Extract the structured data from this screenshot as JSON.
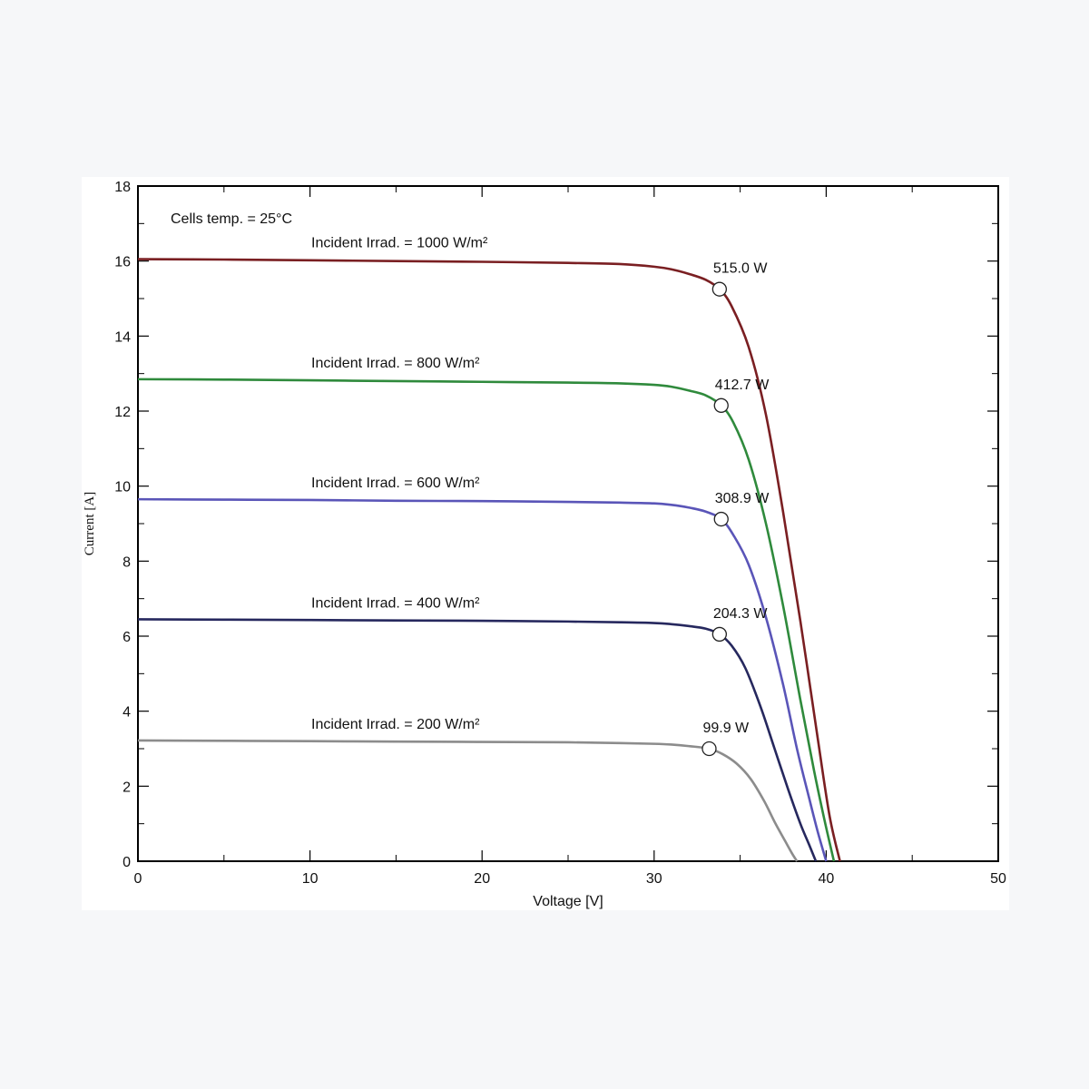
{
  "chart_data": {
    "type": "line",
    "title": "",
    "xlabel": "Voltage [V]",
    "ylabel": "Current [A]",
    "xlim": [
      0,
      50
    ],
    "ylim": [
      0,
      18
    ],
    "xticks": [
      0,
      10,
      20,
      30,
      40,
      50
    ],
    "yticks": [
      0,
      2,
      4,
      6,
      8,
      10,
      12,
      14,
      16,
      18
    ],
    "grid": false,
    "note": "Cells temp. = 25°C",
    "series": [
      {
        "name": "Incident Irrad. = 1000 W/m²",
        "color": "#7a1f22",
        "isc": 16.05,
        "voc": 40.8,
        "vmp": 33.8,
        "imp": 15.25,
        "mpp_label": "515.0 W",
        "x": [
          0,
          5,
          10,
          15,
          20,
          25,
          28,
          30,
          31,
          32,
          33,
          33.8,
          34.5,
          35.5,
          36.5,
          37.5,
          38.5,
          39.5,
          40.2,
          40.8
        ],
        "y": [
          16.05,
          16.04,
          16.02,
          16.0,
          15.98,
          15.95,
          15.92,
          15.85,
          15.78,
          15.66,
          15.5,
          15.25,
          14.8,
          13.7,
          11.9,
          9.3,
          6.4,
          3.3,
          1.2,
          0
        ]
      },
      {
        "name": "Incident Irrad. = 800 W/m²",
        "color": "#2f8a3c",
        "isc": 12.85,
        "voc": 40.45,
        "vmp": 33.9,
        "imp": 12.15,
        "mpp_label": "412.7 W",
        "x": [
          0,
          5,
          10,
          15,
          20,
          25,
          28,
          30,
          31,
          32,
          33,
          33.9,
          34.6,
          35.5,
          36.5,
          37.5,
          38.5,
          39.3,
          39.9,
          40.45
        ],
        "y": [
          12.85,
          12.84,
          12.82,
          12.8,
          12.78,
          12.76,
          12.74,
          12.7,
          12.65,
          12.55,
          12.42,
          12.15,
          11.7,
          10.7,
          9.0,
          6.8,
          4.3,
          2.4,
          1.1,
          0
        ]
      },
      {
        "name": "Incident Irrad. = 600 W/m²",
        "color": "#5a55b8",
        "isc": 9.65,
        "voc": 40.0,
        "vmp": 33.9,
        "imp": 9.12,
        "mpp_label": "308.9 W",
        "x": [
          0,
          5,
          10,
          15,
          20,
          25,
          28,
          30,
          31,
          32,
          33,
          33.9,
          34.6,
          35.5,
          36.5,
          37.5,
          38.3,
          39.0,
          39.5,
          40.0
        ],
        "y": [
          9.65,
          9.64,
          9.63,
          9.61,
          9.6,
          9.58,
          9.56,
          9.54,
          9.5,
          9.43,
          9.32,
          9.12,
          8.7,
          7.9,
          6.5,
          4.7,
          3.0,
          1.7,
          0.8,
          0
        ]
      },
      {
        "name": "Incident Irrad. = 400 W/m²",
        "color": "#26285e",
        "isc": 6.45,
        "voc": 39.4,
        "vmp": 33.8,
        "imp": 6.05,
        "mpp_label": "204.3 W",
        "x": [
          0,
          5,
          10,
          15,
          20,
          25,
          28,
          30,
          31,
          32,
          33,
          33.8,
          34.5,
          35.3,
          36.2,
          37.0,
          37.8,
          38.5,
          39.0,
          39.4
        ],
        "y": [
          6.45,
          6.44,
          6.43,
          6.42,
          6.41,
          6.39,
          6.37,
          6.35,
          6.32,
          6.27,
          6.2,
          6.05,
          5.75,
          5.15,
          4.1,
          3.0,
          1.9,
          1.0,
          0.45,
          0
        ]
      },
      {
        "name": "Incident Irrad. = 200 W/m²",
        "color": "#8c8c8c",
        "isc": 3.22,
        "voc": 38.3,
        "vmp": 33.2,
        "imp": 3.0,
        "mpp_label": "99.9 W",
        "x": [
          0,
          5,
          10,
          15,
          20,
          25,
          28,
          30,
          31,
          32,
          33.2,
          34.0,
          34.8,
          35.6,
          36.4,
          37.0,
          37.6,
          38.0,
          38.3
        ],
        "y": [
          3.22,
          3.21,
          3.2,
          3.19,
          3.18,
          3.17,
          3.15,
          3.13,
          3.11,
          3.07,
          3.0,
          2.85,
          2.6,
          2.2,
          1.6,
          1.05,
          0.55,
          0.22,
          0
        ]
      }
    ]
  }
}
